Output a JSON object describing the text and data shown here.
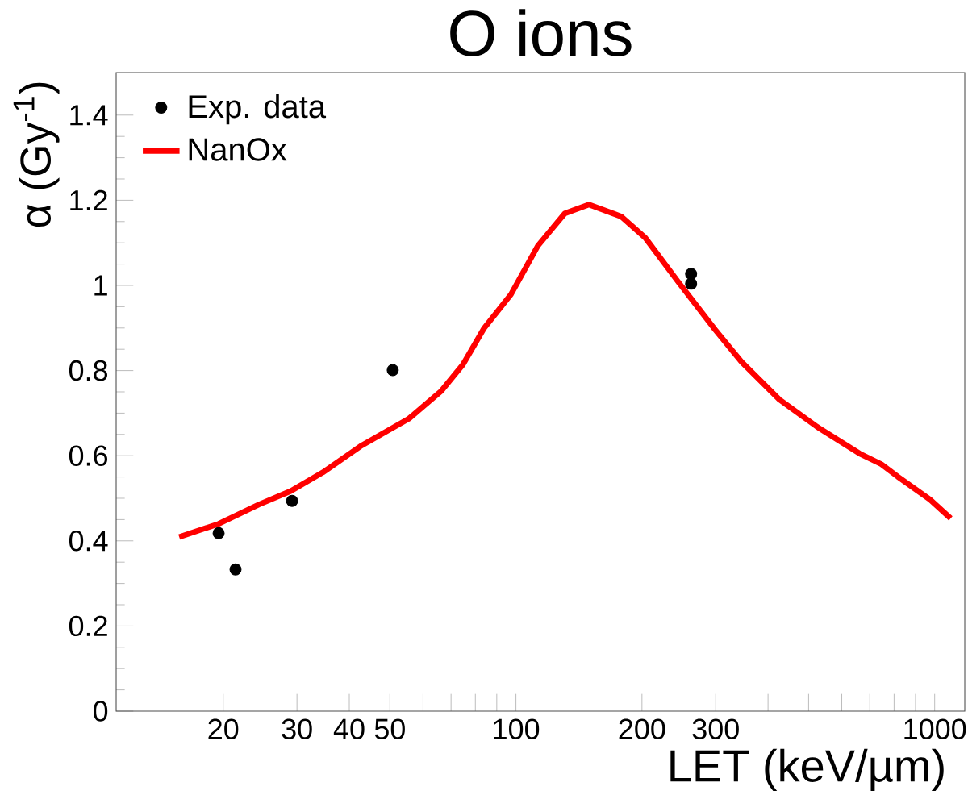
{
  "chart_data": {
    "type": "line",
    "title": "O ions",
    "xlabel": "LET (keV/µm)",
    "ylabel": "α (Gy$^{-1}$)",
    "log": "x",
    "xlim": [
      11.1,
      1180
    ],
    "ylim": [
      0,
      1.5
    ],
    "xticks": [
      20,
      30,
      40,
      50,
      {
        "value": 60,
        "label": null
      },
      {
        "value": 70,
        "label": null
      },
      {
        "value": 80,
        "label": null
      },
      {
        "value": 90,
        "label": null
      },
      100,
      200,
      300,
      {
        "value": 400,
        "label": null
      },
      {
        "value": 500,
        "label": null
      },
      {
        "value": 600,
        "label": null
      },
      {
        "value": 700,
        "label": null
      },
      {
        "value": 800,
        "label": null
      },
      {
        "value": 900,
        "label": null
      },
      1000
    ],
    "yticks": [
      0,
      0.2,
      0.4,
      0.6,
      0.8,
      1,
      1.2,
      1.4
    ],
    "grid": false,
    "legend": "top left",
    "series": [
      {
        "name": "Exp. data",
        "type": "scatter",
        "color": "#000000",
        "marker": "circle",
        "x": [
          19.5,
          21.4,
          29.2,
          50.8,
          262,
          262
        ],
        "values": [
          0.418,
          0.333,
          0.494,
          0.801,
          1.027,
          1.004
        ]
      },
      {
        "name": "NanOx",
        "type": "line",
        "color": "#ff0000",
        "marker": "none",
        "line_style": "solid",
        "x": [
          15.7,
          19.5,
          24.3,
          29.0,
          34.6,
          42.5,
          55.5,
          66.2,
          74.7,
          84.0,
          97.3,
          112.8,
          130.8,
          149.4,
          178.3,
          203.6,
          243.4,
          299,
          346,
          425.7,
          523.6,
          662,
          746,
          816,
          975,
          1092
        ],
        "values": [
          0.409,
          0.44,
          0.485,
          0.517,
          0.561,
          0.622,
          0.687,
          0.751,
          0.814,
          0.9,
          0.979,
          1.093,
          1.169,
          1.19,
          1.162,
          1.112,
          1.01,
          0.896,
          0.82,
          0.732,
          0.668,
          0.605,
          0.58,
          0.551,
          0.497,
          0.453
        ]
      }
    ]
  }
}
